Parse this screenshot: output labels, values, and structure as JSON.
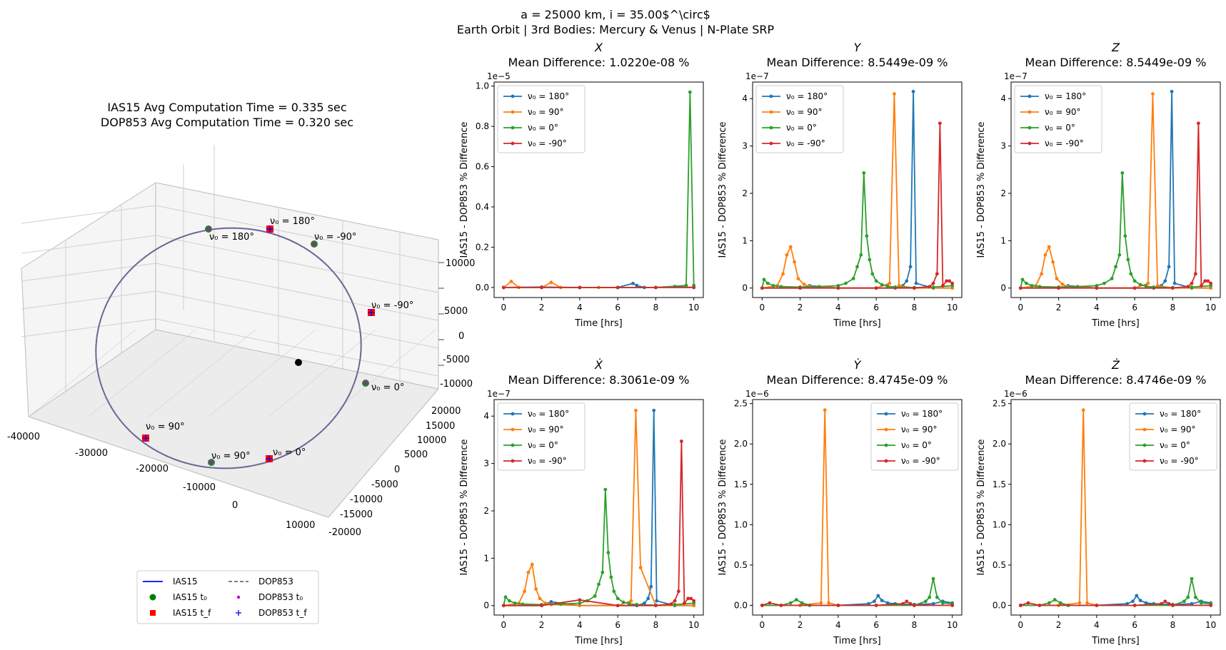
{
  "figure": {
    "suptitle_line1": "a = 25000 km, i = 35.00$^\\circ$",
    "suptitle_line2": "Earth Orbit | 3rd Bodies: Mercury & Venus | N-Plate SRP"
  },
  "orbit3d": {
    "title_line1": "IAS15 Avg Computation Time = 0.335 sec",
    "title_line2": "DOP853 Avg Computation Time = 0.320 sec",
    "x_ticks": [
      "-40000",
      "-30000",
      "-20000",
      "-10000",
      "0",
      "10000"
    ],
    "y_ticks": [
      "20000",
      "15000",
      "10000",
      "5000",
      "0",
      "-5000",
      "-10000",
      "-15000",
      "-20000"
    ],
    "z_ticks": [
      "10000",
      "5000",
      "0",
      "-5000",
      "-10000"
    ],
    "annotations": [
      {
        "text": "ν₀ = 180°",
        "mark": "square"
      },
      {
        "text": "ν₀ = 180°",
        "mark": "circle"
      },
      {
        "text": "ν₀ = -90°",
        "mark": "circle"
      },
      {
        "text": "ν₀ = -90°",
        "mark": "square"
      },
      {
        "text": "ν₀ = 0°",
        "mark": "circle"
      },
      {
        "text": "ν₀ = 90°",
        "mark": "square"
      },
      {
        "text": "ν₀ = 90°",
        "mark": "circle"
      },
      {
        "text": "ν₀ = 0°",
        "mark": "square"
      }
    ],
    "legend": [
      {
        "label": "IAS15",
        "kind": "line",
        "color": "#0000ff"
      },
      {
        "label": "DOP853",
        "kind": "dash",
        "color": "#555555"
      },
      {
        "label": "IAS15 t₀",
        "kind": "circle",
        "color": "#008000"
      },
      {
        "label": "DOP853 t₀",
        "kind": "dot",
        "color": "#bf00bf"
      },
      {
        "label": "IAS15 t_f",
        "kind": "square",
        "color": "#ff0000"
      },
      {
        "label": "DOP853 t_f",
        "kind": "plus",
        "color": "#0000ff"
      }
    ]
  },
  "chart_data": [
    {
      "type": "line",
      "title": "X",
      "subtitle": "Mean Difference: 1.0220e-08 %",
      "xlabel": "Time [hrs]",
      "ylabel": "IAS15 - DOP853 % Difference",
      "exponent": "1e−5",
      "xlim": [
        -0.5,
        10.5
      ],
      "ylim": [
        -0.05,
        1.02
      ],
      "yticks": [
        0.0,
        0.2,
        0.4,
        0.6,
        0.8,
        1.0
      ],
      "ytick_labels": [
        "0.0",
        "0.2",
        "0.4",
        "0.6",
        "0.8",
        "1.0"
      ],
      "xticks": [
        0,
        2,
        4,
        6,
        8,
        10
      ],
      "legend_position": "upper-left",
      "series": [
        {
          "name": "ν₀ = 180°",
          "color": "#1f77b4",
          "x": [
            0,
            2,
            4,
            6,
            6.8,
            7,
            7.4,
            8,
            9,
            10
          ],
          "y": [
            0,
            0.002,
            0,
            0,
            0.02,
            0.01,
            0,
            0,
            0.005,
            0
          ]
        },
        {
          "name": "ν₀ = 90°",
          "color": "#ff7f0e",
          "x": [
            0,
            0.4,
            0.8,
            2,
            2.5,
            3,
            5,
            8,
            10
          ],
          "y": [
            0,
            0.03,
            0,
            0,
            0.025,
            0,
            0,
            0,
            0
          ]
        },
        {
          "name": "ν₀ = 0°",
          "color": "#2ca02c",
          "x": [
            0,
            2,
            4,
            6,
            8,
            9.6,
            9.8,
            10
          ],
          "y": [
            0,
            0,
            0,
            0,
            0,
            0.01,
            0.97,
            0.01
          ]
        },
        {
          "name": "ν₀ = -90°",
          "color": "#d62728",
          "x": [
            0,
            2,
            4,
            6,
            8,
            10
          ],
          "y": [
            0,
            0,
            0,
            0,
            0,
            0
          ]
        }
      ]
    },
    {
      "type": "line",
      "title": "Y",
      "subtitle": "Mean Difference: 8.5449e-09 %",
      "xlabel": "Time [hrs]",
      "ylabel": "IAS15 - DOP853 % Difference",
      "exponent": "1e−7",
      "xlim": [
        -0.5,
        10.5
      ],
      "ylim": [
        -0.2,
        4.35
      ],
      "yticks": [
        0,
        1,
        2,
        3,
        4
      ],
      "ytick_labels": [
        "0",
        "1",
        "2",
        "3",
        "4"
      ],
      "xticks": [
        0,
        2,
        4,
        6,
        8,
        10
      ],
      "legend_position": "upper-left",
      "series": [
        {
          "name": "ν₀ = 180°",
          "color": "#1f77b4",
          "x": [
            0,
            2,
            2.5,
            4,
            6,
            7,
            7.4,
            7.6,
            7.8,
            7.95,
            8.1,
            9,
            10
          ],
          "y": [
            0,
            0,
            0.05,
            0,
            0,
            0,
            0.05,
            0.15,
            0.45,
            4.15,
            0.1,
            0,
            0
          ]
        },
        {
          "name": "ν₀ = 90°",
          "color": "#ff7f0e",
          "x": [
            0,
            0.8,
            1.1,
            1.3,
            1.5,
            1.7,
            1.9,
            2.2,
            2.5,
            4,
            6,
            6.7,
            6.95,
            7.2,
            8,
            10
          ],
          "y": [
            0,
            0.05,
            0.3,
            0.7,
            0.87,
            0.55,
            0.2,
            0.08,
            0.03,
            0,
            0,
            0.1,
            4.1,
            0.05,
            0,
            0
          ]
        },
        {
          "name": "ν₀ = 0°",
          "color": "#2ca02c",
          "x": [
            0,
            0.1,
            0.3,
            0.6,
            1,
            2,
            3,
            4,
            4.4,
            4.8,
            5,
            5.2,
            5.35,
            5.5,
            5.65,
            5.8,
            6,
            6.3,
            6.6,
            7,
            8,
            9,
            10
          ],
          "y": [
            0,
            0.18,
            0.1,
            0.05,
            0.03,
            0.02,
            0.03,
            0.05,
            0.1,
            0.2,
            0.45,
            0.7,
            2.43,
            1.1,
            0.6,
            0.3,
            0.15,
            0.07,
            0.04,
            0.02,
            0.01,
            0.02,
            0.05
          ]
        },
        {
          "name": "ν₀ = -90°",
          "color": "#d62728",
          "x": [
            0,
            2,
            4,
            6,
            8,
            8.8,
            9,
            9.2,
            9.35,
            9.5,
            9.7,
            9.85,
            10
          ],
          "y": [
            0,
            0,
            0,
            0,
            0,
            0.03,
            0.1,
            0.3,
            3.48,
            0.05,
            0.15,
            0.15,
            0.1
          ]
        }
      ]
    },
    {
      "type": "line",
      "title": "Z",
      "subtitle": "Mean Difference: 8.5449e-09 %",
      "xlabel": "Time [hrs]",
      "ylabel": "IAS15 - DOP853 % Difference",
      "exponent": "1e−7",
      "xlim": [
        -0.5,
        10.5
      ],
      "ylim": [
        -0.2,
        4.35
      ],
      "yticks": [
        0,
        1,
        2,
        3,
        4
      ],
      "ytick_labels": [
        "0",
        "1",
        "2",
        "3",
        "4"
      ],
      "xticks": [
        0,
        2,
        4,
        6,
        8,
        10
      ],
      "legend_position": "upper-left",
      "series": [
        {
          "name": "ν₀ = 180°",
          "color": "#1f77b4",
          "x": [
            0,
            2,
            2.5,
            4,
            6,
            7,
            7.4,
            7.6,
            7.8,
            7.95,
            8.1,
            9,
            10
          ],
          "y": [
            0,
            0,
            0.05,
            0,
            0,
            0,
            0.05,
            0.15,
            0.45,
            4.15,
            0.1,
            0,
            0
          ]
        },
        {
          "name": "ν₀ = 90°",
          "color": "#ff7f0e",
          "x": [
            0,
            0.8,
            1.1,
            1.3,
            1.5,
            1.7,
            1.9,
            2.2,
            2.5,
            4,
            6,
            6.7,
            6.95,
            7.2,
            8,
            10
          ],
          "y": [
            0,
            0.05,
            0.3,
            0.7,
            0.87,
            0.55,
            0.2,
            0.08,
            0.03,
            0,
            0,
            0.1,
            4.1,
            0.05,
            0,
            0
          ]
        },
        {
          "name": "ν₀ = 0°",
          "color": "#2ca02c",
          "x": [
            0,
            0.1,
            0.3,
            0.6,
            1,
            2,
            3,
            4,
            4.4,
            4.8,
            5,
            5.2,
            5.35,
            5.5,
            5.65,
            5.8,
            6,
            6.3,
            6.6,
            7,
            8,
            9,
            10
          ],
          "y": [
            0,
            0.18,
            0.1,
            0.05,
            0.03,
            0.02,
            0.03,
            0.05,
            0.1,
            0.2,
            0.45,
            0.7,
            2.43,
            1.1,
            0.6,
            0.3,
            0.15,
            0.07,
            0.04,
            0.02,
            0.01,
            0.02,
            0.05
          ]
        },
        {
          "name": "ν₀ = -90°",
          "color": "#d62728",
          "x": [
            0,
            2,
            4,
            6,
            8,
            8.8,
            9,
            9.2,
            9.35,
            9.5,
            9.7,
            9.85,
            10
          ],
          "y": [
            0,
            0,
            0,
            0,
            0,
            0.03,
            0.1,
            0.3,
            3.48,
            0.05,
            0.15,
            0.15,
            0.1
          ]
        }
      ]
    },
    {
      "type": "line",
      "title": "Ẋ",
      "subtitle": "Mean Difference: 8.3061e-09 %",
      "xlabel": "Time [hrs]",
      "ylabel": "IAS15 - DOP853 % Difference",
      "exponent": "1e−7",
      "xlim": [
        -0.5,
        10.5
      ],
      "ylim": [
        -0.2,
        4.35
      ],
      "yticks": [
        0,
        1,
        2,
        3,
        4
      ],
      "ytick_labels": [
        "0",
        "1",
        "2",
        "3",
        "4"
      ],
      "xticks": [
        0,
        2,
        4,
        6,
        8,
        10
      ],
      "legend_position": "upper-left",
      "series": [
        {
          "name": "ν₀ = 180°",
          "color": "#1f77b4",
          "x": [
            0,
            2,
            2.5,
            4,
            6,
            7,
            7.4,
            7.6,
            7.75,
            7.9,
            8.05,
            9,
            10
          ],
          "y": [
            0,
            0,
            0.08,
            0,
            0,
            0,
            0.05,
            0.15,
            0.4,
            4.12,
            0.1,
            0,
            0
          ]
        },
        {
          "name": "ν₀ = 90°",
          "color": "#ff7f0e",
          "x": [
            0,
            0.8,
            1.1,
            1.3,
            1.5,
            1.7,
            1.9,
            2.2,
            2.5,
            4,
            6,
            6.7,
            6.95,
            7.2,
            8,
            10
          ],
          "y": [
            0,
            0.05,
            0.3,
            0.7,
            0.87,
            0.35,
            0.15,
            0.05,
            0.02,
            0,
            0,
            0.1,
            4.12,
            0.8,
            0,
            0
          ]
        },
        {
          "name": "ν₀ = 0°",
          "color": "#2ca02c",
          "x": [
            0,
            0.1,
            0.3,
            0.6,
            1,
            2,
            3,
            4,
            4.4,
            4.8,
            5,
            5.2,
            5.35,
            5.5,
            5.65,
            5.8,
            6,
            6.3,
            6.6,
            7,
            8,
            9,
            10
          ],
          "y": [
            0,
            0.18,
            0.1,
            0.05,
            0.03,
            0.02,
            0.03,
            0.05,
            0.1,
            0.2,
            0.45,
            0.7,
            2.45,
            1.12,
            0.6,
            0.3,
            0.15,
            0.07,
            0.04,
            0.02,
            0.01,
            0.02,
            0.05
          ]
        },
        {
          "name": "ν₀ = -90°",
          "color": "#d62728",
          "x": [
            0,
            2,
            4,
            6,
            8,
            8.8,
            9,
            9.2,
            9.35,
            9.5,
            9.7,
            9.85,
            10
          ],
          "y": [
            0,
            0,
            0.12,
            0,
            0,
            0.03,
            0.1,
            0.3,
            3.47,
            0.05,
            0.15,
            0.15,
            0.1
          ]
        }
      ]
    },
    {
      "type": "line",
      "title": "Ẏ",
      "subtitle": "Mean Difference: 8.4745e-09 %",
      "xlabel": "Time [hrs]",
      "ylabel": "IAS15 - DOP853 % Difference",
      "exponent": "1e−6",
      "xlim": [
        -0.5,
        10.5
      ],
      "ylim": [
        -0.12,
        2.55
      ],
      "yticks": [
        0.0,
        0.5,
        1.0,
        1.5,
        2.0,
        2.5
      ],
      "ytick_labels": [
        "0.0",
        "0.5",
        "1.0",
        "1.5",
        "2.0",
        "2.5"
      ],
      "xticks": [
        0,
        2,
        4,
        6,
        8,
        10
      ],
      "legend_position": "upper-right",
      "series": [
        {
          "name": "ν₀ = 180°",
          "color": "#1f77b4",
          "x": [
            0,
            2,
            4,
            5.6,
            5.9,
            6.1,
            6.3,
            6.6,
            7,
            8,
            9,
            9.5,
            10
          ],
          "y": [
            0,
            0,
            0,
            0.02,
            0.05,
            0.12,
            0.06,
            0.03,
            0.02,
            0.01,
            0.02,
            0.05,
            0.03
          ]
        },
        {
          "name": "ν₀ = 90°",
          "color": "#ff7f0e",
          "x": [
            0,
            2,
            3.1,
            3.3,
            3.5,
            4,
            6,
            8,
            10
          ],
          "y": [
            0,
            0,
            0.03,
            2.42,
            0.03,
            0,
            0,
            0,
            0
          ]
        },
        {
          "name": "ν₀ = 0°",
          "color": "#2ca02c",
          "x": [
            0,
            1,
            1.5,
            1.8,
            2.1,
            2.5,
            4,
            6,
            8,
            8.6,
            8.8,
            9,
            9.2,
            9.5,
            10
          ],
          "y": [
            0,
            0,
            0.03,
            0.07,
            0.03,
            0,
            0,
            0,
            0,
            0.05,
            0.1,
            0.33,
            0.1,
            0.03,
            0.02
          ]
        },
        {
          "name": "ν₀ = -90°",
          "color": "#d62728",
          "x": [
            0,
            0.4,
            1,
            4,
            6,
            7.4,
            7.6,
            7.8,
            8,
            10
          ],
          "y": [
            0,
            0.03,
            0,
            0,
            0,
            0.02,
            0.05,
            0.02,
            0,
            0
          ]
        }
      ]
    },
    {
      "type": "line",
      "title": "Ż",
      "subtitle": "Mean Difference: 8.4746e-09 %",
      "xlabel": "Time [hrs]",
      "ylabel": "IAS15 - DOP853 % Difference",
      "exponent": "1e−6",
      "xlim": [
        -0.5,
        10.5
      ],
      "ylim": [
        -0.12,
        2.55
      ],
      "yticks": [
        0.0,
        0.5,
        1.0,
        1.5,
        2.0,
        2.5
      ],
      "ytick_labels": [
        "0.0",
        "0.5",
        "1.0",
        "1.5",
        "2.0",
        "2.5"
      ],
      "xticks": [
        0,
        2,
        4,
        6,
        8,
        10
      ],
      "legend_position": "upper-right",
      "series": [
        {
          "name": "ν₀ = 180°",
          "color": "#1f77b4",
          "x": [
            0,
            2,
            4,
            5.6,
            5.9,
            6.1,
            6.3,
            6.6,
            7,
            8,
            9,
            9.5,
            10
          ],
          "y": [
            0,
            0,
            0,
            0.02,
            0.05,
            0.12,
            0.06,
            0.03,
            0.02,
            0.01,
            0.02,
            0.05,
            0.03
          ]
        },
        {
          "name": "ν₀ = 90°",
          "color": "#ff7f0e",
          "x": [
            0,
            2,
            3.1,
            3.3,
            3.5,
            4,
            6,
            8,
            10
          ],
          "y": [
            0,
            0,
            0.03,
            2.42,
            0.03,
            0,
            0,
            0,
            0
          ]
        },
        {
          "name": "ν₀ = 0°",
          "color": "#2ca02c",
          "x": [
            0,
            1,
            1.5,
            1.8,
            2.1,
            2.5,
            4,
            6,
            8,
            8.6,
            8.8,
            9,
            9.2,
            9.5,
            10
          ],
          "y": [
            0,
            0,
            0.03,
            0.07,
            0.03,
            0,
            0,
            0,
            0,
            0.05,
            0.1,
            0.33,
            0.1,
            0.03,
            0.02
          ]
        },
        {
          "name": "ν₀ = -90°",
          "color": "#d62728",
          "x": [
            0,
            0.4,
            1,
            4,
            6,
            7.4,
            7.6,
            7.8,
            8,
            10
          ],
          "y": [
            0,
            0.03,
            0,
            0,
            0,
            0.02,
            0.05,
            0.02,
            0,
            0
          ]
        }
      ]
    }
  ]
}
